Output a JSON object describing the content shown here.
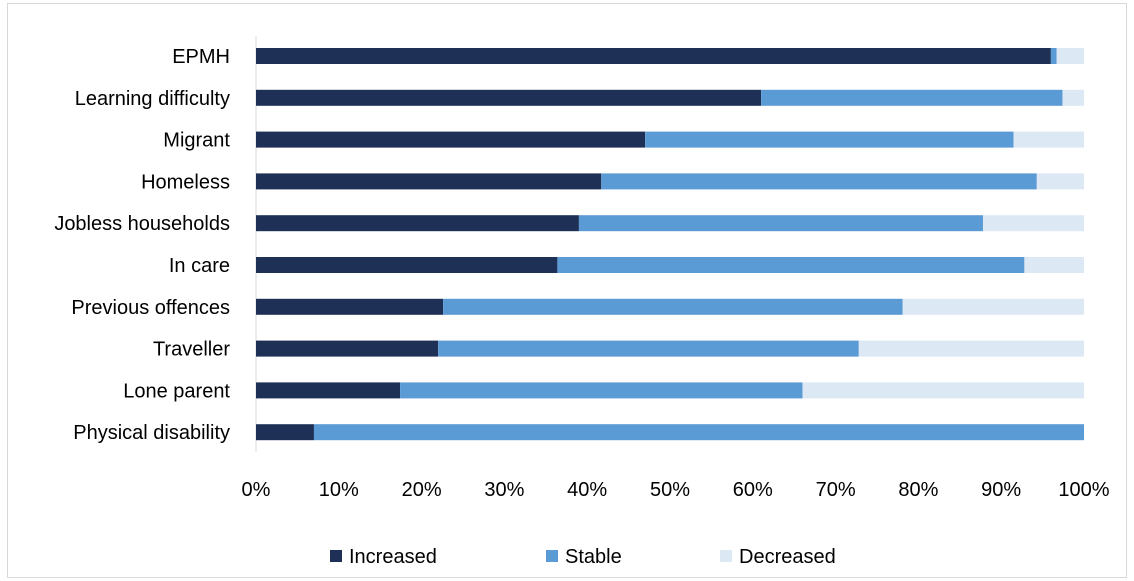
{
  "chart_data": {
    "type": "bar",
    "orientation": "horizontal",
    "stacked": true,
    "normalized": true,
    "categories": [
      "EPMH",
      "Learning difficulty",
      "Migrant",
      "Homeless",
      "Jobless households",
      "In care",
      "Previous offences",
      "Traveller",
      "Lone parent",
      "Physical disability"
    ],
    "series": [
      {
        "name": "Increased",
        "color": "#1f3057",
        "values": [
          96,
          61,
          47,
          41.7,
          39,
          36.4,
          22.6,
          22,
          17.4,
          7
        ]
      },
      {
        "name": "Stable",
        "color": "#5b9bd5",
        "values": [
          0.7,
          36.4,
          44.5,
          52.6,
          48.8,
          56.4,
          55.5,
          50.8,
          48.6,
          93
        ]
      },
      {
        "name": "Decreased",
        "color": "#dde8f5",
        "values": [
          3.3,
          2.6,
          8.5,
          5.7,
          12.2,
          7.2,
          21.9,
          27.2,
          34,
          0
        ]
      }
    ],
    "x_ticks": [
      "0%",
      "10%",
      "20%",
      "30%",
      "40%",
      "50%",
      "60%",
      "70%",
      "80%",
      "90%",
      "100%"
    ],
    "xlim": [
      0,
      100
    ],
    "grid": false,
    "legend_position": "bottom",
    "title": "",
    "xlabel": "",
    "ylabel": ""
  }
}
